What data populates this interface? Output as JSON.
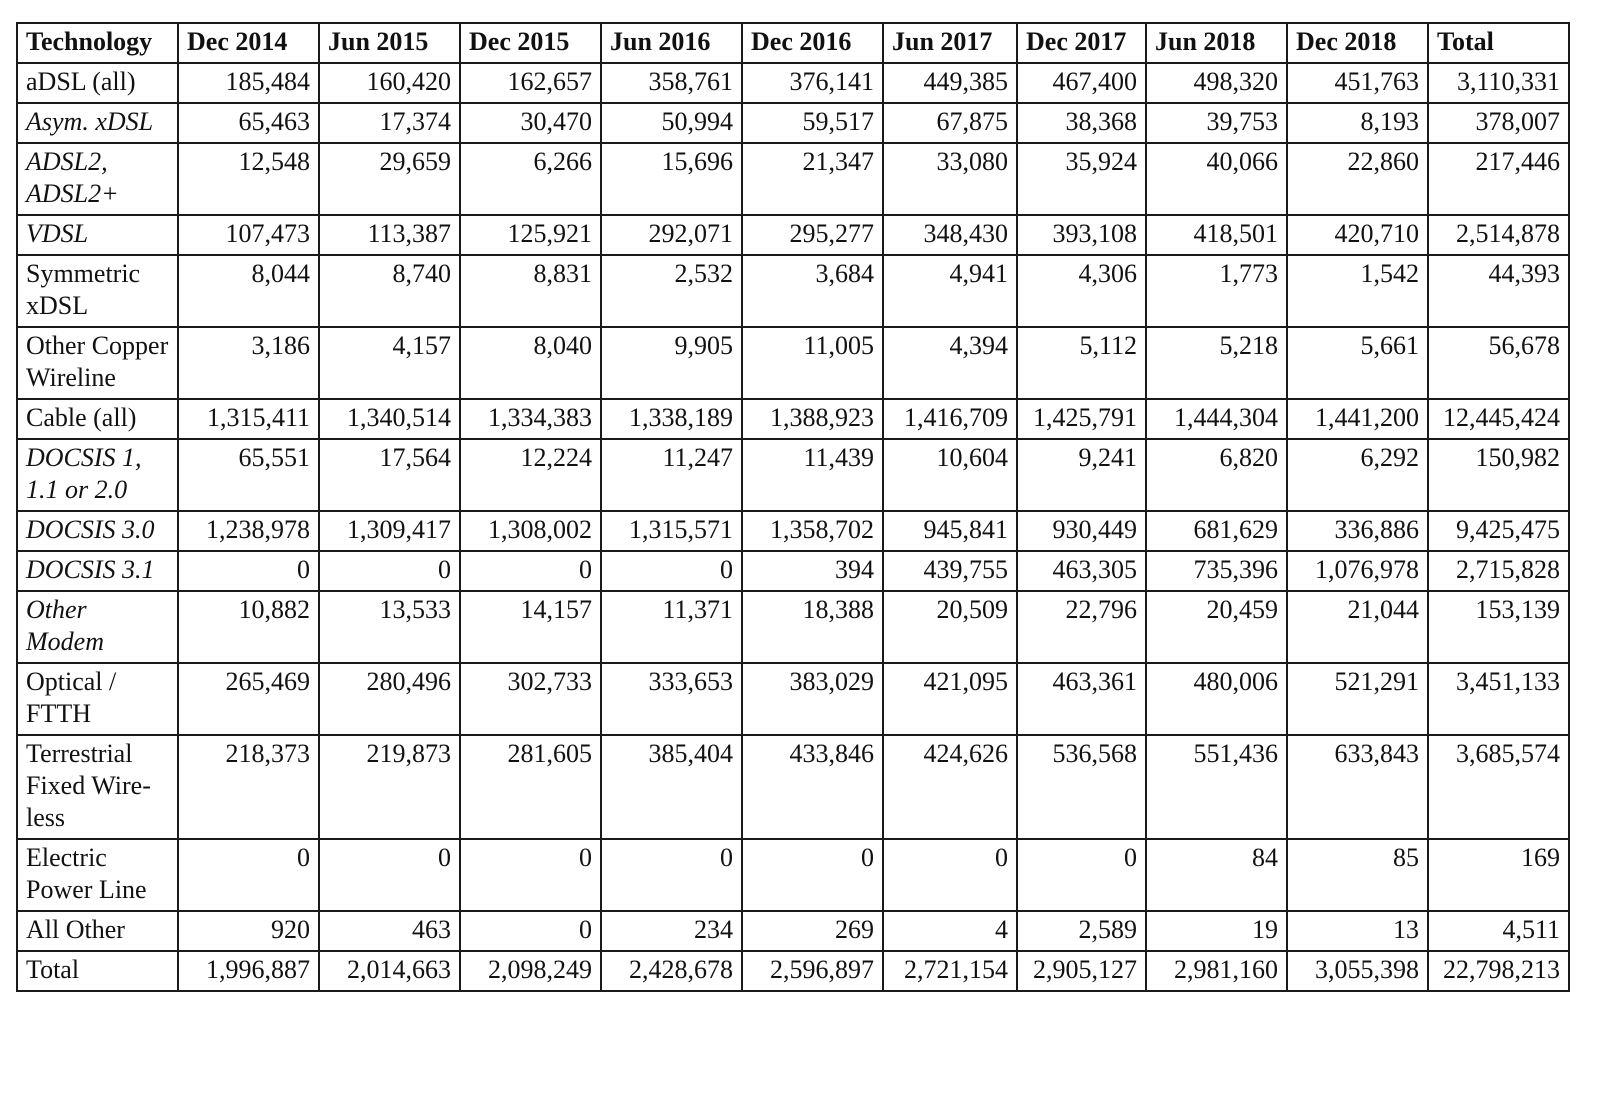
{
  "table": {
    "headers": [
      "Technology",
      "Dec 2014",
      "Jun 2015",
      "Dec 2015",
      "Jun 2016",
      "Dec 2016",
      "Jun 2017",
      "Dec 2017",
      "Jun 2018",
      "Dec 2018",
      "Total"
    ],
    "rows": [
      {
        "label": "aDSL (all)",
        "style": "bold",
        "values": [
          "185,484",
          "160,420",
          "162,657",
          "358,761",
          "376,141",
          "449,385",
          "467,400",
          "498,320",
          "451,763",
          "3,110,331"
        ]
      },
      {
        "label": "Asym. xDSL",
        "style": "italic",
        "values": [
          "65,463",
          "17,374",
          "30,470",
          "50,994",
          "59,517",
          "67,875",
          "38,368",
          "39,753",
          "8,193",
          "378,007"
        ]
      },
      {
        "label": "ADSL2, ADSL2+",
        "style": "italic",
        "values": [
          "12,548",
          "29,659",
          "6,266",
          "15,696",
          "21,347",
          "33,080",
          "35,924",
          "40,066",
          "22,860",
          "217,446"
        ]
      },
      {
        "label": "VDSL",
        "style": "italic",
        "values": [
          "107,473",
          "113,387",
          "125,921",
          "292,071",
          "295,277",
          "348,430",
          "393,108",
          "418,501",
          "420,710",
          "2,514,878"
        ]
      },
      {
        "label": "Symmetric xDSL",
        "style": "normal",
        "values": [
          "8,044",
          "8,740",
          "8,831",
          "2,532",
          "3,684",
          "4,941",
          "4,306",
          "1,773",
          "1,542",
          "44,393"
        ]
      },
      {
        "label": "Other Cop­per Wireline",
        "style": "normal",
        "values": [
          "3,186",
          "4,157",
          "8,040",
          "9,905",
          "11,005",
          "4,394",
          "5,112",
          "5,218",
          "5,661",
          "56,678"
        ]
      },
      {
        "label": "Cable (all)",
        "style": "bold",
        "values": [
          "1,315,411",
          "1,340,514",
          "1,334,383",
          "1,338,189",
          "1,388,923",
          "1,416,709",
          "1,425,791",
          "1,444,304",
          "1,441,200",
          "12,445,424"
        ]
      },
      {
        "label": "DOCSIS 1, 1.1 or 2.0",
        "style": "italic",
        "values": [
          "65,551",
          "17,564",
          "12,224",
          "11,247",
          "11,439",
          "10,604",
          "9,241",
          "6,820",
          "6,292",
          "150,982"
        ]
      },
      {
        "label": "DOCSIS 3.0",
        "style": "italic",
        "values": [
          "1,238,978",
          "1,309,417",
          "1,308,002",
          "1,315,571",
          "1,358,702",
          "945,841",
          "930,449",
          "681,629",
          "336,886",
          "9,425,475"
        ]
      },
      {
        "label": "DOCSIS 3.1",
        "style": "italic",
        "values": [
          "0",
          "0",
          "0",
          "0",
          "394",
          "439,755",
          "463,305",
          "735,396",
          "1,076,978",
          "2,715,828"
        ]
      },
      {
        "label": "Other Modem",
        "style": "italic",
        "values": [
          "10,882",
          "13,533",
          "14,157",
          "11,371",
          "18,388",
          "20,509",
          "22,796",
          "20,459",
          "21,044",
          "153,139"
        ]
      },
      {
        "label": "Optical / FTTH",
        "style": "bold",
        "values": [
          "265,469",
          "280,496",
          "302,733",
          "333,653",
          "383,029",
          "421,095",
          "463,361",
          "480,006",
          "521,291",
          "3,451,133"
        ]
      },
      {
        "label": "Terrestrial Fixed Wire­less",
        "style": "normal",
        "values": [
          "218,373",
          "219,873",
          "281,605",
          "385,404",
          "433,846",
          "424,626",
          "536,568",
          "551,436",
          "633,843",
          "3,685,574"
        ]
      },
      {
        "label": "Electric Power Line",
        "style": "normal",
        "values": [
          "0",
          "0",
          "0",
          "0",
          "0",
          "0",
          "0",
          "84",
          "85",
          "169"
        ]
      },
      {
        "label": "All Other",
        "style": "normal",
        "values": [
          "920",
          "463",
          "0",
          "234",
          "269",
          "4",
          "2,589",
          "19",
          "13",
          "4,511"
        ]
      },
      {
        "label": "Total",
        "style": "bold",
        "values": [
          "1,996,887",
          "2,014,663",
          "2,098,249",
          "2,428,678",
          "2,596,897",
          "2,721,154",
          "2,905,127",
          "2,981,160",
          "3,055,398",
          "22,798,213"
        ]
      }
    ]
  }
}
